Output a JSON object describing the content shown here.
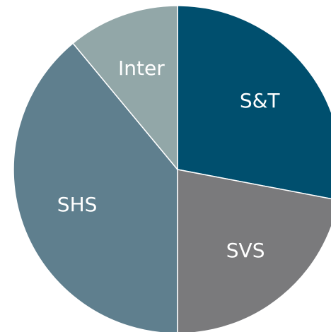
{
  "chart_data": {
    "type": "pie",
    "categories": [
      "S&T",
      "SVS",
      "SHS",
      "Inter"
    ],
    "values": [
      28,
      22,
      39,
      11
    ],
    "colors": [
      "#004f6e",
      "#7a7a7c",
      "#5f7f8e",
      "#92a7a8"
    ],
    "start_angle": 0,
    "direction": "clockwise"
  }
}
